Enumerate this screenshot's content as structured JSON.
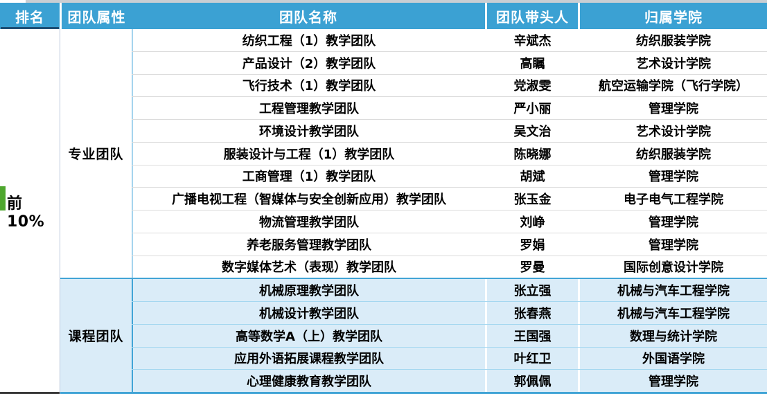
{
  "table": {
    "columns": [
      "排名",
      "团队属性",
      "团队名称",
      "团队带头人",
      "归属学院"
    ],
    "rank_label": "前10%",
    "sections": [
      {
        "attribute": "专业团队",
        "rows": [
          {
            "name": "纺织工程（1）教学团队",
            "leader": "辛斌杰",
            "college": "纺织服装学院"
          },
          {
            "name": "产品设计（2）教学团队",
            "leader": "高瞩",
            "college": "艺术设计学院"
          },
          {
            "name": "飞行技术（1）教学团队",
            "leader": "党淑雯",
            "college": "航空运输学院（飞行学院）"
          },
          {
            "name": "工程管理教学团队",
            "leader": "严小丽",
            "college": "管理学院"
          },
          {
            "name": "环境设计教学团队",
            "leader": "吴文治",
            "college": "艺术设计学院"
          },
          {
            "name": "服装设计与工程（1）教学团队",
            "leader": "陈晓娜",
            "college": "纺织服装学院"
          },
          {
            "name": "工商管理（1）教学团队",
            "leader": "胡斌",
            "college": "管理学院"
          },
          {
            "name": "广播电视工程（智媒体与安全创新应用）教学团队",
            "leader": "张玉金",
            "college": "电子电气工程学院"
          },
          {
            "name": "物流管理教学团队",
            "leader": "刘峥",
            "college": "管理学院"
          },
          {
            "name": "养老服务管理教学团队",
            "leader": "罗娟",
            "college": "管理学院"
          },
          {
            "name": "数字媒体艺术（表现）教学团队",
            "leader": "罗曼",
            "college": "国际创意设计学院"
          }
        ]
      },
      {
        "attribute": "课程团队",
        "rows": [
          {
            "name": "机械原理教学团队",
            "leader": "张立强",
            "college": "机械与汽车工程学院"
          },
          {
            "name": "机械设计教学团队",
            "leader": "张春燕",
            "college": "机械与汽车工程学院"
          },
          {
            "name": "高等数学A（上）教学团队",
            "leader": "王国强",
            "college": "数理与统计学院"
          },
          {
            "name": "应用外语拓展课程教学团队",
            "leader": "叶红卫",
            "college": "外国语学院"
          },
          {
            "name": "心理健康教育教学团队",
            "leader": "郭佩佩",
            "college": "管理学院"
          }
        ]
      }
    ]
  },
  "colors": {
    "header_bg": "#3ba1d3",
    "header_text": "#ffffff",
    "section_bg": "#daecf8",
    "section_border": "#41a4d6",
    "accent_green": "#4ea72e",
    "rank_header_underline": "#1d4e74",
    "row_separator": "#dcdcdc"
  }
}
